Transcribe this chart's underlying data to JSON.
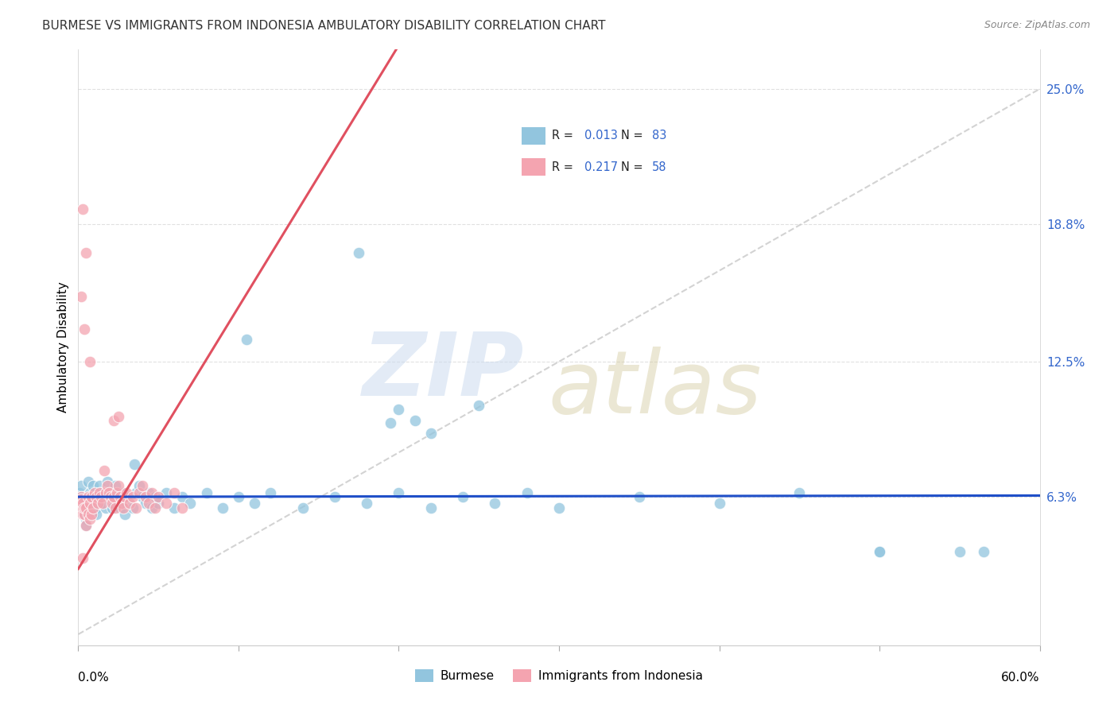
{
  "title": "BURMESE VS IMMIGRANTS FROM INDONESIA AMBULATORY DISABILITY CORRELATION CHART",
  "source": "Source: ZipAtlas.com",
  "ylabel": "Ambulatory Disability",
  "xlim": [
    0.0,
    0.6
  ],
  "ylim": [
    -0.005,
    0.268
  ],
  "ytick_vals": [
    0.063,
    0.125,
    0.188,
    0.25
  ],
  "ytick_labels": [
    "6.3%",
    "12.5%",
    "18.8%",
    "25.0%"
  ],
  "legend_r1": "R = 0.013",
  "legend_n1": "N = 83",
  "legend_r2": "R = 0.217",
  "legend_n2": "N = 58",
  "legend_label1": "Burmese",
  "legend_label2": "Immigrants from Indonesia",
  "blue_color": "#92c5de",
  "pink_color": "#f4a4b0",
  "trendline1_color": "#1f4fc8",
  "trendline2_color": "#e05060",
  "grid_color": "#e0e0e0",
  "diag_color": "#c8c8c8",
  "title_fontsize": 11,
  "source_fontsize": 9,
  "blue_x": [
    0.001,
    0.002,
    0.002,
    0.003,
    0.003,
    0.004,
    0.004,
    0.005,
    0.005,
    0.006,
    0.006,
    0.007,
    0.007,
    0.008,
    0.008,
    0.009,
    0.009,
    0.01,
    0.01,
    0.011,
    0.011,
    0.012,
    0.013,
    0.014,
    0.015,
    0.016,
    0.017,
    0.018,
    0.019,
    0.02,
    0.021,
    0.022,
    0.023,
    0.024,
    0.025,
    0.026,
    0.027,
    0.028,
    0.029,
    0.03,
    0.032,
    0.034,
    0.036,
    0.038,
    0.04,
    0.042,
    0.044,
    0.046,
    0.048,
    0.05,
    0.055,
    0.06,
    0.065,
    0.07,
    0.08,
    0.09,
    0.1,
    0.11,
    0.12,
    0.14,
    0.16,
    0.18,
    0.2,
    0.22,
    0.24,
    0.26,
    0.28,
    0.3,
    0.35,
    0.4,
    0.45,
    0.5,
    0.55,
    0.175,
    0.105,
    0.25,
    0.2,
    0.21,
    0.22,
    0.195,
    0.5,
    0.565,
    0.035
  ],
  "blue_y": [
    0.065,
    0.063,
    0.068,
    0.06,
    0.062,
    0.058,
    0.055,
    0.053,
    0.05,
    0.063,
    0.07,
    0.065,
    0.063,
    0.06,
    0.058,
    0.055,
    0.068,
    0.063,
    0.06,
    0.058,
    0.055,
    0.063,
    0.068,
    0.065,
    0.062,
    0.06,
    0.058,
    0.07,
    0.063,
    0.06,
    0.058,
    0.065,
    0.068,
    0.063,
    0.06,
    0.058,
    0.063,
    0.065,
    0.055,
    0.06,
    0.063,
    0.058,
    0.065,
    0.068,
    0.063,
    0.06,
    0.065,
    0.058,
    0.063,
    0.06,
    0.065,
    0.058,
    0.063,
    0.06,
    0.065,
    0.058,
    0.063,
    0.06,
    0.065,
    0.058,
    0.063,
    0.06,
    0.065,
    0.058,
    0.063,
    0.06,
    0.065,
    0.058,
    0.063,
    0.06,
    0.065,
    0.038,
    0.038,
    0.175,
    0.135,
    0.105,
    0.103,
    0.098,
    0.092,
    0.097,
    0.038,
    0.038,
    0.078
  ],
  "pink_x": [
    0.001,
    0.002,
    0.002,
    0.003,
    0.003,
    0.004,
    0.004,
    0.005,
    0.005,
    0.006,
    0.006,
    0.007,
    0.007,
    0.008,
    0.008,
    0.009,
    0.01,
    0.011,
    0.012,
    0.013,
    0.014,
    0.015,
    0.016,
    0.017,
    0.018,
    0.019,
    0.02,
    0.021,
    0.022,
    0.023,
    0.024,
    0.025,
    0.026,
    0.027,
    0.028,
    0.029,
    0.03,
    0.032,
    0.034,
    0.036,
    0.038,
    0.04,
    0.042,
    0.044,
    0.046,
    0.048,
    0.05,
    0.055,
    0.06,
    0.065,
    0.003,
    0.005,
    0.002,
    0.004,
    0.007,
    0.003,
    0.022,
    0.025
  ],
  "pink_y": [
    0.058,
    0.063,
    0.062,
    0.06,
    0.055,
    0.055,
    0.058,
    0.05,
    0.058,
    0.063,
    0.055,
    0.053,
    0.06,
    0.055,
    0.063,
    0.058,
    0.065,
    0.063,
    0.06,
    0.065,
    0.063,
    0.06,
    0.075,
    0.065,
    0.068,
    0.065,
    0.063,
    0.06,
    0.063,
    0.058,
    0.065,
    0.068,
    0.063,
    0.06,
    0.058,
    0.063,
    0.065,
    0.06,
    0.063,
    0.058,
    0.065,
    0.068,
    0.063,
    0.06,
    0.065,
    0.058,
    0.063,
    0.06,
    0.065,
    0.058,
    0.195,
    0.175,
    0.155,
    0.14,
    0.125,
    0.035,
    0.098,
    0.1
  ]
}
